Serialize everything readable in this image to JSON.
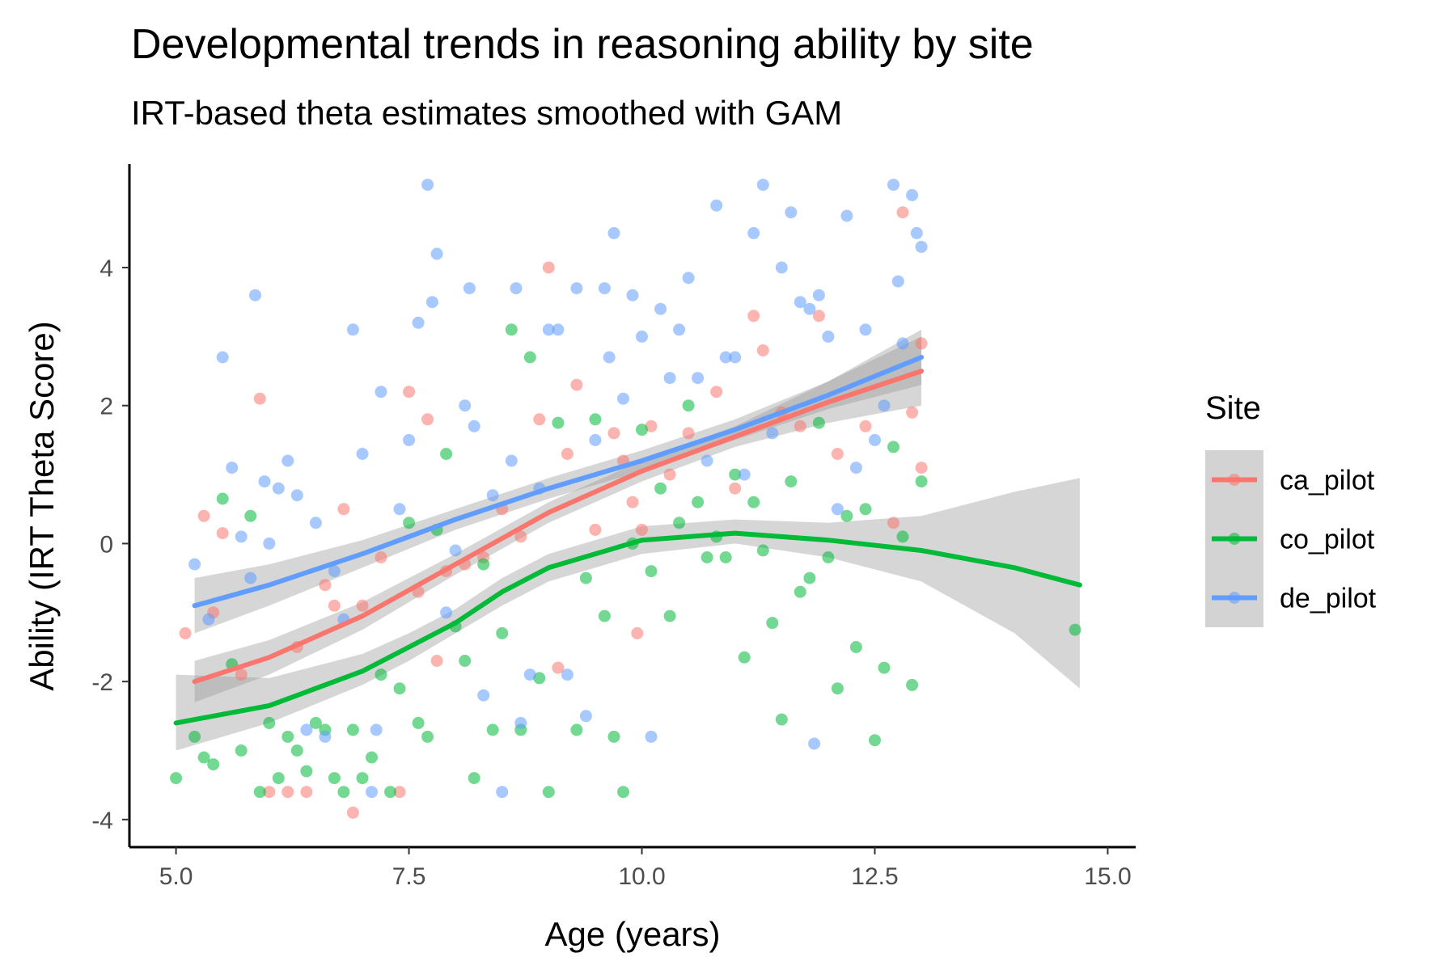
{
  "chart_data": {
    "type": "scatter",
    "title": "Developmental trends in reasoning ability by site",
    "subtitle": "IRT-based theta estimates smoothed with GAM",
    "xlabel": "Age (years)",
    "ylabel": "Ability (IRT Theta Score)",
    "xlim": [
      4.5,
      15.3
    ],
    "ylim": [
      -4.4,
      5.5
    ],
    "x_ticks": [
      5.0,
      7.5,
      10.0,
      12.5,
      15.0
    ],
    "x_tick_labels": [
      "5.0",
      "7.5",
      "10.0",
      "12.5",
      "15.0"
    ],
    "y_ticks": [
      -4,
      -2,
      0,
      2,
      4
    ],
    "y_tick_labels": [
      "-4",
      "-2",
      "0",
      "2",
      "4"
    ],
    "grid": false,
    "legend": {
      "title": "Site",
      "position": "right"
    },
    "series": [
      {
        "name": "ca_pilot",
        "color": "#F8766D",
        "points": [
          [
            5.1,
            -1.3
          ],
          [
            5.3,
            0.4
          ],
          [
            5.4,
            -1.0
          ],
          [
            5.5,
            0.15
          ],
          [
            5.7,
            -1.9
          ],
          [
            5.9,
            2.1
          ],
          [
            6.0,
            -3.6
          ],
          [
            6.2,
            -3.6
          ],
          [
            6.3,
            -1.5
          ],
          [
            6.4,
            -3.6
          ],
          [
            6.6,
            -0.6
          ],
          [
            6.7,
            -0.9
          ],
          [
            6.8,
            0.5
          ],
          [
            6.9,
            -3.9
          ],
          [
            7.0,
            -0.9
          ],
          [
            7.2,
            -0.2
          ],
          [
            7.4,
            -3.6
          ],
          [
            7.5,
            2.2
          ],
          [
            7.6,
            -0.7
          ],
          [
            7.7,
            1.8
          ],
          [
            7.8,
            -1.7
          ],
          [
            7.9,
            -0.4
          ],
          [
            8.1,
            -0.3
          ],
          [
            8.3,
            -0.2
          ],
          [
            8.5,
            0.5
          ],
          [
            8.7,
            0.1
          ],
          [
            8.9,
            1.8
          ],
          [
            9.0,
            4.0
          ],
          [
            9.1,
            -1.8
          ],
          [
            9.2,
            1.3
          ],
          [
            9.3,
            2.3
          ],
          [
            9.5,
            0.2
          ],
          [
            9.7,
            1.6
          ],
          [
            9.8,
            1.2
          ],
          [
            9.9,
            0.6
          ],
          [
            9.95,
            -1.3
          ],
          [
            10.0,
            0.2
          ],
          [
            10.1,
            1.7
          ],
          [
            10.3,
            1.0
          ],
          [
            10.5,
            1.6
          ],
          [
            10.8,
            2.2
          ],
          [
            11.0,
            0.8
          ],
          [
            11.2,
            3.3
          ],
          [
            11.3,
            2.8
          ],
          [
            11.5,
            1.9
          ],
          [
            11.7,
            1.7
          ],
          [
            11.9,
            3.3
          ],
          [
            12.1,
            1.3
          ],
          [
            12.4,
            1.7
          ],
          [
            12.7,
            0.3
          ],
          [
            12.8,
            4.8
          ],
          [
            12.9,
            1.9
          ],
          [
            13.0,
            2.9
          ],
          [
            13.0,
            1.1
          ]
        ],
        "fit": [
          [
            5.2,
            -2.0
          ],
          [
            6.0,
            -1.65
          ],
          [
            7.0,
            -1.05
          ],
          [
            8.0,
            -0.3
          ],
          [
            9.0,
            0.45
          ],
          [
            10.0,
            1.05
          ],
          [
            11.0,
            1.55
          ],
          [
            12.0,
            2.05
          ],
          [
            13.0,
            2.5
          ]
        ],
        "band_lower": [
          [
            5.2,
            -2.3
          ],
          [
            6.0,
            -1.9
          ],
          [
            7.0,
            -1.25
          ],
          [
            8.0,
            -0.45
          ],
          [
            9.0,
            0.3
          ],
          [
            10.0,
            0.9
          ],
          [
            11.0,
            1.4
          ],
          [
            12.0,
            1.75
          ],
          [
            13.0,
            2.0
          ]
        ],
        "band_upper": [
          [
            5.2,
            -1.7
          ],
          [
            6.0,
            -1.4
          ],
          [
            7.0,
            -0.85
          ],
          [
            8.0,
            -0.15
          ],
          [
            9.0,
            0.6
          ],
          [
            10.0,
            1.2
          ],
          [
            11.0,
            1.7
          ],
          [
            12.0,
            2.35
          ],
          [
            13.0,
            3.0
          ]
        ]
      },
      {
        "name": "co_pilot",
        "color": "#00BA38",
        "points": [
          [
            5.0,
            -3.4
          ],
          [
            5.2,
            -2.8
          ],
          [
            5.3,
            -3.1
          ],
          [
            5.4,
            -3.2
          ],
          [
            5.5,
            0.65
          ],
          [
            5.6,
            -1.75
          ],
          [
            5.7,
            -3.0
          ],
          [
            5.8,
            0.4
          ],
          [
            5.9,
            -3.6
          ],
          [
            6.0,
            -2.6
          ],
          [
            6.1,
            -3.4
          ],
          [
            6.2,
            -2.8
          ],
          [
            6.3,
            -3.0
          ],
          [
            6.4,
            -3.3
          ],
          [
            6.5,
            -2.6
          ],
          [
            6.6,
            -2.7
          ],
          [
            6.7,
            -3.4
          ],
          [
            6.8,
            -3.6
          ],
          [
            6.9,
            -2.7
          ],
          [
            7.0,
            -3.4
          ],
          [
            7.1,
            -3.1
          ],
          [
            7.2,
            -1.9
          ],
          [
            7.3,
            -3.6
          ],
          [
            7.4,
            -2.1
          ],
          [
            7.5,
            0.3
          ],
          [
            7.6,
            -2.6
          ],
          [
            7.7,
            -2.8
          ],
          [
            7.8,
            0.2
          ],
          [
            7.9,
            1.3
          ],
          [
            8.0,
            -1.2
          ],
          [
            8.1,
            -1.7
          ],
          [
            8.2,
            -3.4
          ],
          [
            8.3,
            -0.3
          ],
          [
            8.4,
            -2.7
          ],
          [
            8.5,
            -1.3
          ],
          [
            8.6,
            3.1
          ],
          [
            8.7,
            -2.7
          ],
          [
            8.8,
            2.7
          ],
          [
            8.9,
            -1.95
          ],
          [
            9.0,
            -3.6
          ],
          [
            9.1,
            1.75
          ],
          [
            9.3,
            -2.7
          ],
          [
            9.4,
            -0.5
          ],
          [
            9.5,
            1.8
          ],
          [
            9.6,
            -1.05
          ],
          [
            9.7,
            -2.8
          ],
          [
            9.8,
            -3.6
          ],
          [
            9.9,
            0.0
          ],
          [
            10.0,
            1.65
          ],
          [
            10.1,
            -0.4
          ],
          [
            10.2,
            0.8
          ],
          [
            10.3,
            -1.05
          ],
          [
            10.4,
            0.3
          ],
          [
            10.5,
            2.0
          ],
          [
            10.6,
            0.6
          ],
          [
            10.7,
            -0.2
          ],
          [
            10.8,
            0.1
          ],
          [
            10.9,
            -0.2
          ],
          [
            11.0,
            1.0
          ],
          [
            11.1,
            -1.65
          ],
          [
            11.2,
            0.6
          ],
          [
            11.3,
            -0.1
          ],
          [
            11.4,
            -1.15
          ],
          [
            11.5,
            -2.55
          ],
          [
            11.6,
            0.9
          ],
          [
            11.7,
            -0.7
          ],
          [
            11.8,
            -0.5
          ],
          [
            11.9,
            1.75
          ],
          [
            12.0,
            -0.2
          ],
          [
            12.1,
            -2.1
          ],
          [
            12.2,
            0.4
          ],
          [
            12.3,
            -1.5
          ],
          [
            12.4,
            0.5
          ],
          [
            12.5,
            -2.85
          ],
          [
            12.6,
            -1.8
          ],
          [
            12.7,
            1.4
          ],
          [
            12.8,
            0.1
          ],
          [
            12.9,
            -2.05
          ],
          [
            13.0,
            0.9
          ],
          [
            14.65,
            -1.25
          ]
        ],
        "fit": [
          [
            5.0,
            -2.6
          ],
          [
            6.0,
            -2.35
          ],
          [
            7.0,
            -1.85
          ],
          [
            7.5,
            -1.5
          ],
          [
            8.0,
            -1.15
          ],
          [
            8.5,
            -0.7
          ],
          [
            9.0,
            -0.35
          ],
          [
            10.0,
            0.05
          ],
          [
            11.0,
            0.15
          ],
          [
            12.0,
            0.05
          ],
          [
            13.0,
            -0.1
          ],
          [
            14.0,
            -0.35
          ],
          [
            14.7,
            -0.6
          ]
        ],
        "band_lower": [
          [
            5.0,
            -3.0
          ],
          [
            6.0,
            -2.6
          ],
          [
            7.0,
            -2.05
          ],
          [
            7.5,
            -1.7
          ],
          [
            8.0,
            -1.3
          ],
          [
            8.5,
            -0.9
          ],
          [
            9.0,
            -0.55
          ],
          [
            10.0,
            -0.15
          ],
          [
            11.0,
            0.0
          ],
          [
            12.0,
            -0.2
          ],
          [
            13.0,
            -0.55
          ],
          [
            14.0,
            -1.3
          ],
          [
            14.7,
            -2.1
          ]
        ],
        "band_upper": [
          [
            5.0,
            -1.9
          ],
          [
            6.0,
            -1.95
          ],
          [
            7.0,
            -1.6
          ],
          [
            7.5,
            -1.3
          ],
          [
            8.0,
            -0.95
          ],
          [
            8.5,
            -0.5
          ],
          [
            9.0,
            -0.15
          ],
          [
            10.0,
            0.25
          ],
          [
            11.0,
            0.35
          ],
          [
            12.0,
            0.3
          ],
          [
            13.0,
            0.4
          ],
          [
            14.0,
            0.75
          ],
          [
            14.7,
            0.95
          ]
        ]
      },
      {
        "name": "de_pilot",
        "color": "#619CFF",
        "points": [
          [
            5.2,
            -0.3
          ],
          [
            5.35,
            -1.1
          ],
          [
            5.5,
            2.7
          ],
          [
            5.6,
            1.1
          ],
          [
            5.7,
            0.1
          ],
          [
            5.8,
            -0.5
          ],
          [
            5.85,
            3.6
          ],
          [
            5.95,
            0.9
          ],
          [
            6.0,
            0.0
          ],
          [
            6.1,
            0.8
          ],
          [
            6.2,
            1.2
          ],
          [
            6.3,
            0.7
          ],
          [
            6.4,
            -2.7
          ],
          [
            6.5,
            0.3
          ],
          [
            6.6,
            -2.8
          ],
          [
            6.7,
            -0.4
          ],
          [
            6.8,
            -1.1
          ],
          [
            6.9,
            3.1
          ],
          [
            7.0,
            1.3
          ],
          [
            7.1,
            -3.6
          ],
          [
            7.15,
            -2.7
          ],
          [
            7.2,
            2.2
          ],
          [
            7.4,
            0.5
          ],
          [
            7.5,
            1.5
          ],
          [
            7.6,
            3.2
          ],
          [
            7.7,
            5.2
          ],
          [
            7.75,
            3.5
          ],
          [
            7.8,
            4.2
          ],
          [
            7.9,
            -1.0
          ],
          [
            8.0,
            -0.1
          ],
          [
            8.1,
            2.0
          ],
          [
            8.15,
            3.7
          ],
          [
            8.2,
            1.7
          ],
          [
            8.3,
            -2.2
          ],
          [
            8.4,
            0.7
          ],
          [
            8.5,
            -3.6
          ],
          [
            8.6,
            1.2
          ],
          [
            8.65,
            3.7
          ],
          [
            8.7,
            -2.6
          ],
          [
            8.8,
            -1.9
          ],
          [
            8.9,
            0.8
          ],
          [
            9.0,
            3.1
          ],
          [
            9.1,
            3.1
          ],
          [
            9.2,
            -1.9
          ],
          [
            9.3,
            3.7
          ],
          [
            9.4,
            -2.5
          ],
          [
            9.5,
            1.5
          ],
          [
            9.6,
            3.7
          ],
          [
            9.65,
            2.7
          ],
          [
            9.7,
            4.5
          ],
          [
            9.8,
            2.1
          ],
          [
            9.9,
            3.6
          ],
          [
            10.0,
            3.0
          ],
          [
            10.1,
            -2.8
          ],
          [
            10.2,
            3.4
          ],
          [
            10.3,
            2.4
          ],
          [
            10.4,
            3.1
          ],
          [
            10.5,
            3.85
          ],
          [
            10.6,
            2.4
          ],
          [
            10.7,
            1.2
          ],
          [
            10.8,
            4.9
          ],
          [
            10.9,
            2.7
          ],
          [
            11.0,
            2.7
          ],
          [
            11.1,
            1.0
          ],
          [
            11.2,
            4.5
          ],
          [
            11.3,
            5.2
          ],
          [
            11.4,
            1.6
          ],
          [
            11.5,
            4.0
          ],
          [
            11.6,
            4.8
          ],
          [
            11.7,
            3.5
          ],
          [
            11.8,
            3.4
          ],
          [
            11.85,
            -2.9
          ],
          [
            11.9,
            3.6
          ],
          [
            12.0,
            3.0
          ],
          [
            12.1,
            0.5
          ],
          [
            12.2,
            4.75
          ],
          [
            12.3,
            1.1
          ],
          [
            12.4,
            3.1
          ],
          [
            12.5,
            1.5
          ],
          [
            12.6,
            2.0
          ],
          [
            12.7,
            5.2
          ],
          [
            12.75,
            3.8
          ],
          [
            12.8,
            2.9
          ],
          [
            12.9,
            5.05
          ],
          [
            12.95,
            4.5
          ],
          [
            13.0,
            4.3
          ]
        ],
        "fit": [
          [
            5.2,
            -0.9
          ],
          [
            6.0,
            -0.6
          ],
          [
            7.0,
            -0.15
          ],
          [
            8.0,
            0.35
          ],
          [
            9.0,
            0.8
          ],
          [
            10.0,
            1.2
          ],
          [
            11.0,
            1.65
          ],
          [
            12.0,
            2.15
          ],
          [
            13.0,
            2.7
          ]
        ],
        "band_lower": [
          [
            5.2,
            -1.3
          ],
          [
            6.0,
            -0.9
          ],
          [
            7.0,
            -0.35
          ],
          [
            8.0,
            0.2
          ],
          [
            9.0,
            0.65
          ],
          [
            10.0,
            1.05
          ],
          [
            11.0,
            1.5
          ],
          [
            12.0,
            1.95
          ],
          [
            13.0,
            2.3
          ]
        ],
        "band_upper": [
          [
            5.2,
            -0.5
          ],
          [
            6.0,
            -0.3
          ],
          [
            7.0,
            0.05
          ],
          [
            8.0,
            0.5
          ],
          [
            9.0,
            0.95
          ],
          [
            10.0,
            1.35
          ],
          [
            11.0,
            1.8
          ],
          [
            12.0,
            2.35
          ],
          [
            13.0,
            3.1
          ]
        ]
      }
    ]
  }
}
